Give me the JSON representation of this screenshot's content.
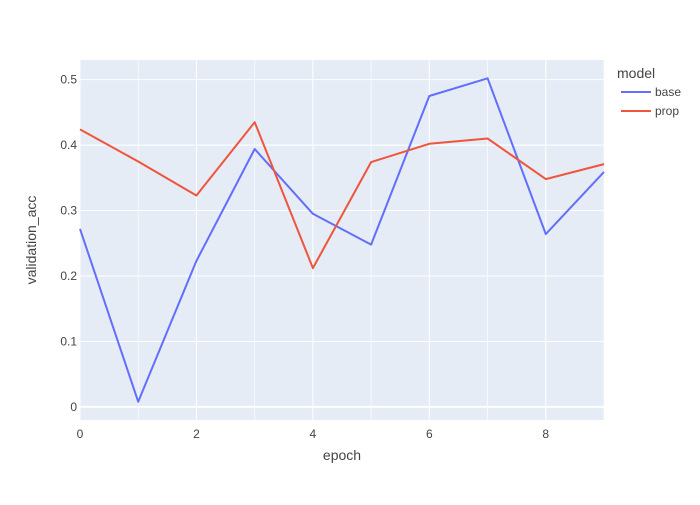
{
  "chart_data": {
    "type": "line",
    "xlabel": "epoch",
    "ylabel": "validation_acc",
    "legend_title": "model",
    "legend_position": "top-right",
    "grid": true,
    "x": [
      0,
      1,
      2,
      3,
      4,
      5,
      6,
      7,
      8,
      9
    ],
    "xlim": [
      0,
      9
    ],
    "ylim": [
      -0.02,
      0.53
    ],
    "x_ticks": [
      0,
      2,
      4,
      6,
      8
    ],
    "y_ticks": [
      0,
      0.1,
      0.2,
      0.3,
      0.4,
      0.5
    ],
    "x_tick_labels": [
      "0",
      "2",
      "4",
      "6",
      "8"
    ],
    "y_tick_labels": [
      "0",
      "0.1",
      "0.2",
      "0.3",
      "0.4",
      "0.5"
    ],
    "series": [
      {
        "name": "base",
        "color": "#636efa",
        "values": [
          0.272,
          0.008,
          0.223,
          0.394,
          0.295,
          0.248,
          0.475,
          0.502,
          0.264,
          0.359
        ]
      },
      {
        "name": "prop",
        "color": "#ef553b",
        "values": [
          0.424,
          0.375,
          0.323,
          0.435,
          0.212,
          0.374,
          0.402,
          0.41,
          0.348,
          0.371
        ]
      }
    ],
    "colors": {
      "plot_background": "#e5ecf6",
      "grid": "#ffffff",
      "text": "#444444"
    }
  }
}
